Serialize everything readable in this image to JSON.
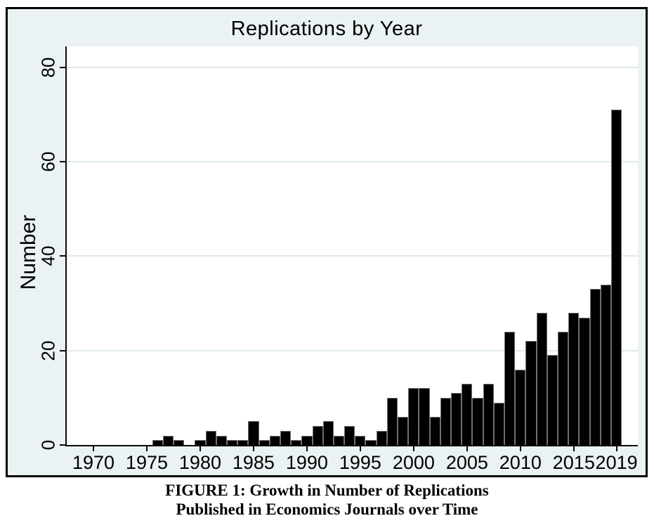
{
  "chart": {
    "title": "Replications by Year",
    "ylabel": "Number"
  },
  "chart_data": {
    "type": "bar",
    "title": "Replications by Year",
    "xlabel": "",
    "ylabel": "Number",
    "x": [
      1970,
      1971,
      1972,
      1973,
      1974,
      1975,
      1976,
      1977,
      1978,
      1979,
      1980,
      1981,
      1982,
      1983,
      1984,
      1985,
      1986,
      1987,
      1988,
      1989,
      1990,
      1991,
      1992,
      1993,
      1994,
      1995,
      1996,
      1997,
      1998,
      1999,
      2000,
      2001,
      2002,
      2003,
      2004,
      2005,
      2006,
      2007,
      2008,
      2009,
      2010,
      2011,
      2012,
      2013,
      2014,
      2015,
      2016,
      2017,
      2018,
      2019
    ],
    "values": [
      0,
      0,
      0,
      0,
      0,
      0,
      1,
      2,
      1,
      0,
      1,
      3,
      2,
      1,
      1,
      5,
      1,
      2,
      3,
      1,
      2,
      4,
      5,
      2,
      4,
      2,
      1,
      3,
      10,
      6,
      12,
      12,
      6,
      10,
      11,
      13,
      10,
      13,
      9,
      24,
      16,
      22,
      28,
      19,
      24,
      28,
      27,
      33,
      34,
      71
    ],
    "xticks": [
      1970,
      1975,
      1980,
      1985,
      1990,
      1995,
      2000,
      2005,
      2010,
      2015,
      2019
    ],
    "yticks": [
      0,
      20,
      40,
      60,
      80
    ],
    "xlim": [
      1967.5,
      2021
    ],
    "ylim": [
      0,
      80
    ],
    "grid": "horizontal",
    "legend": "none",
    "bar_color": "#000000",
    "plot_background": "#ffffff",
    "frame_background": "#eaf2f3",
    "gridline_color": "#dfe9ec"
  },
  "caption": {
    "line1": "FIGURE 1: Growth in Number of Replications",
    "line2": "Published in Economics Journals over Time"
  }
}
